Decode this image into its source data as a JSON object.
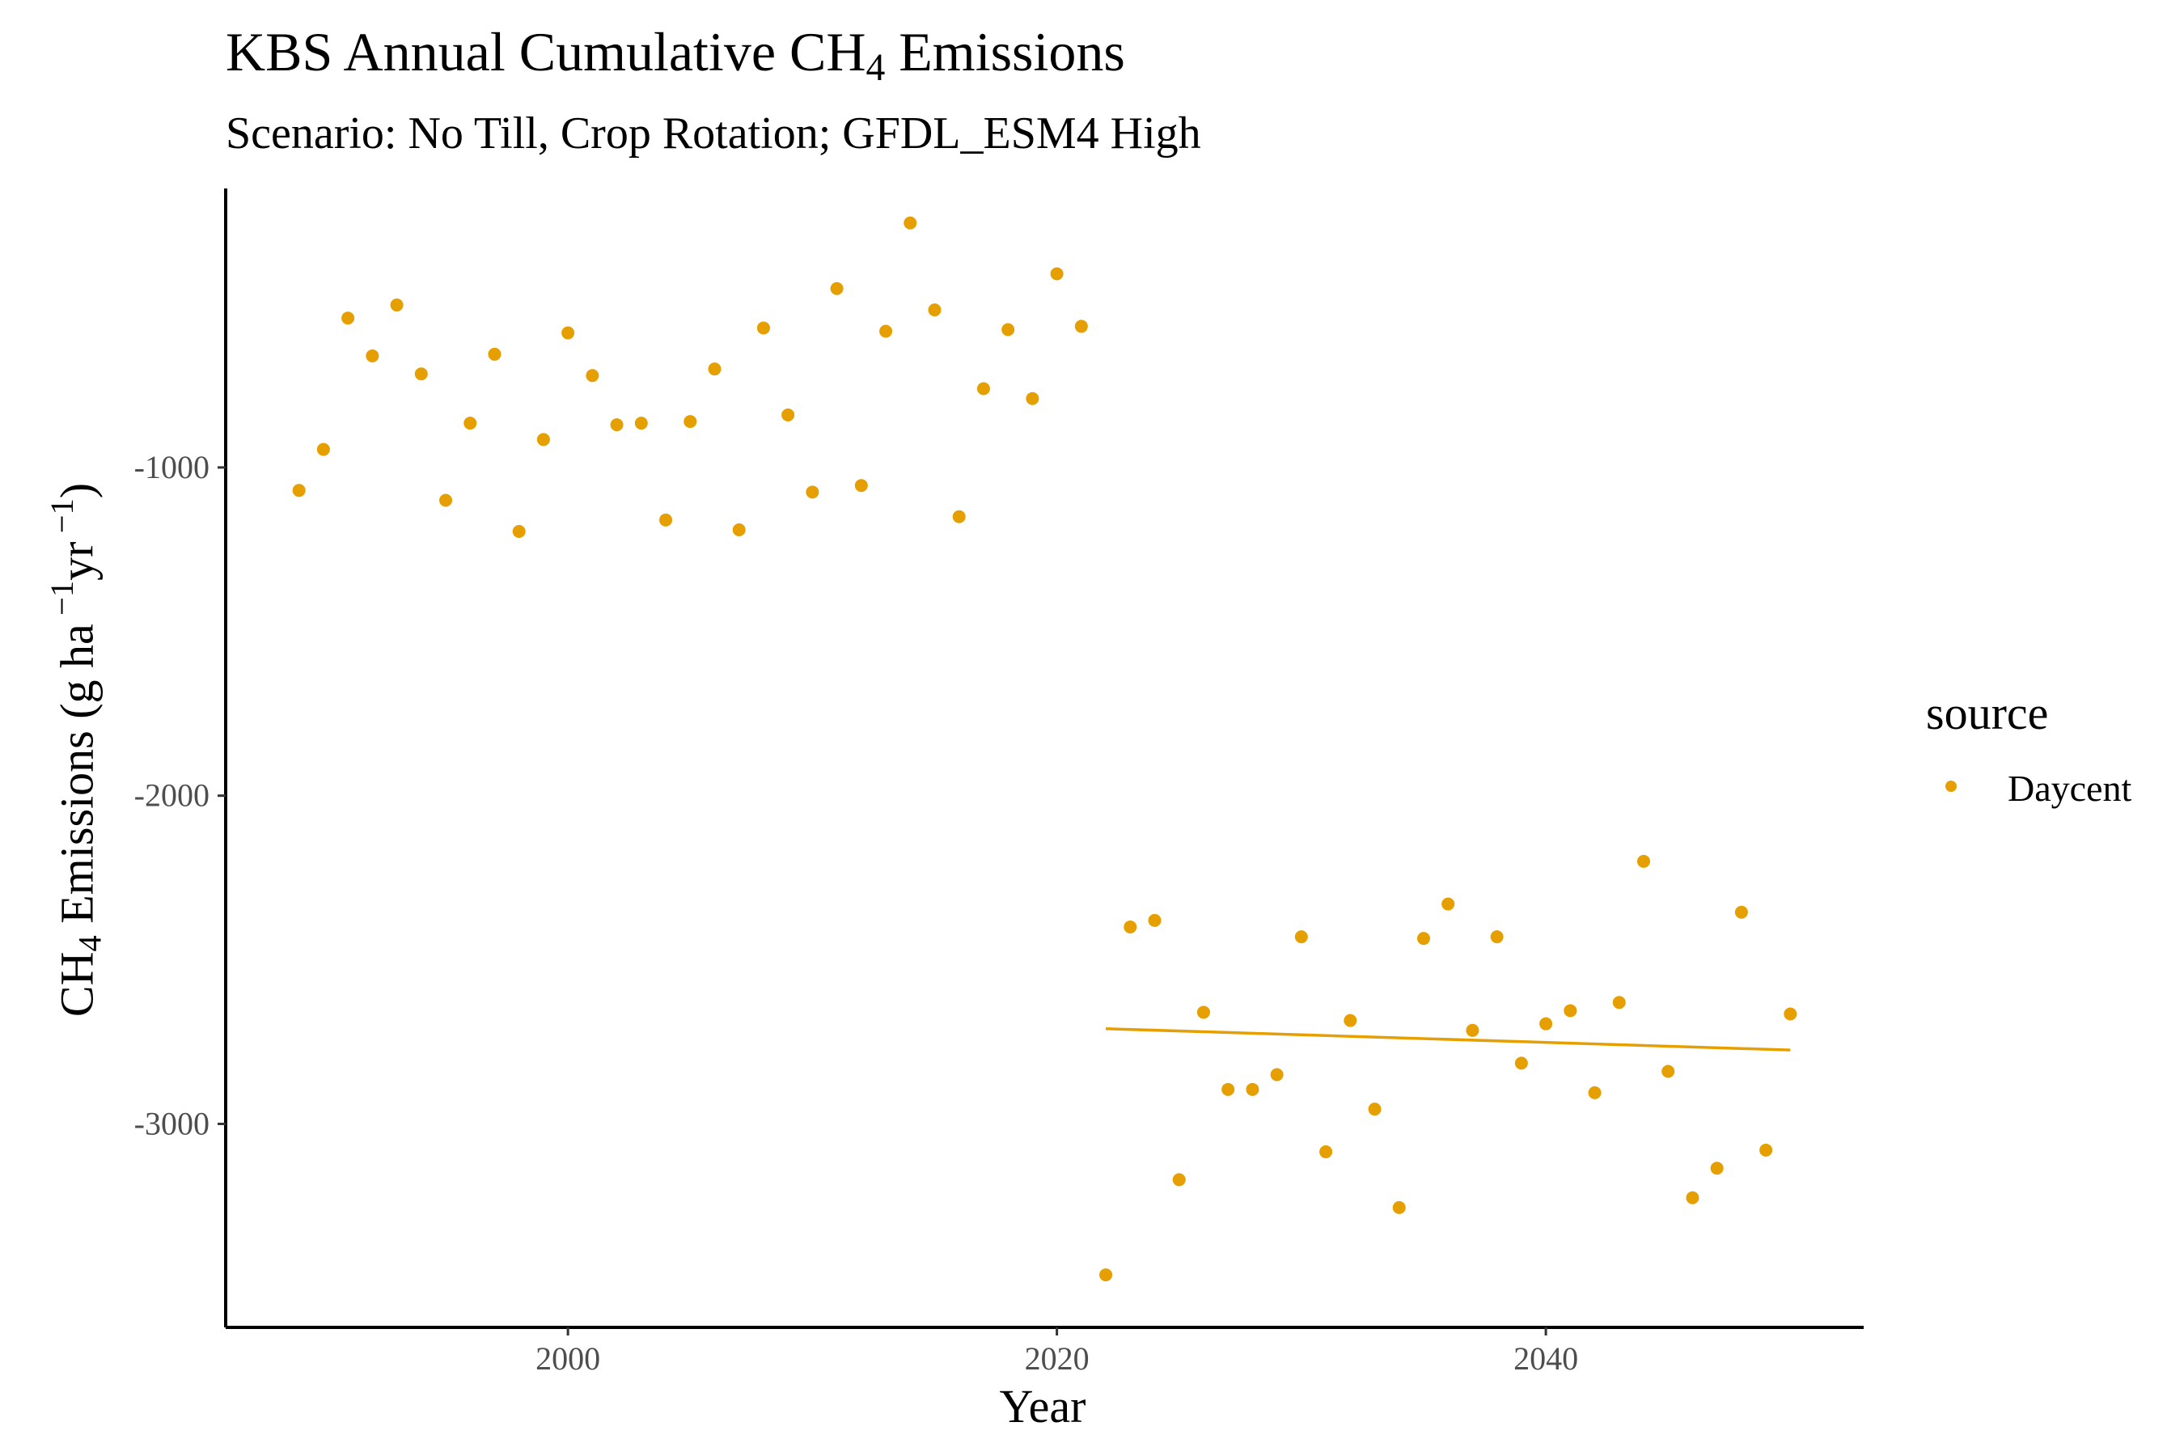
{
  "chart_data": {
    "type": "scatter",
    "title": "KBS Annual Cumulative CH",
    "title_subscript": "4",
    "title_suffix": " Emissions",
    "subtitle": "Scenario: No Till, Crop Rotation; GFDL_ESM4 High",
    "xlabel": "Year",
    "ylabel_parts": {
      "pre": "CH",
      "sub": "4",
      "mid": " Emissions (g ha",
      "sup1": " −1",
      "mid2": "yr",
      "sup2": " −1",
      "post": ")"
    },
    "xlim": [
      1986,
      2053
    ],
    "ylim": [
      -3620,
      -150
    ],
    "x_ticks": [
      2000,
      2020,
      2040
    ],
    "x_tick_labels": [
      "2000",
      "2020",
      "2040"
    ],
    "y_ticks": [
      -1000,
      -2000,
      -3000
    ],
    "y_tick_labels": [
      "-1000",
      "-2000",
      "-3000"
    ],
    "grid": false,
    "legend": {
      "title": "source",
      "position": "right",
      "entries": [
        "Daycent"
      ]
    },
    "series": [
      {
        "name": "Daycent",
        "color": "#E69F00",
        "points": [
          [
            1989,
            -1070
          ],
          [
            1990,
            -945
          ],
          [
            1991,
            -545
          ],
          [
            1992,
            -660
          ],
          [
            1993,
            -505
          ],
          [
            1994,
            -715
          ],
          [
            1995,
            -1100
          ],
          [
            1996,
            -865
          ],
          [
            1997,
            -655
          ],
          [
            1998,
            -1195
          ],
          [
            1999,
            -915
          ],
          [
            2000,
            -590
          ],
          [
            2001,
            -720
          ],
          [
            2002,
            -870
          ],
          [
            2003,
            -865
          ],
          [
            2004,
            -1160
          ],
          [
            2005,
            -860
          ],
          [
            2006,
            -700
          ],
          [
            2007,
            -1190
          ],
          [
            2008,
            -575
          ],
          [
            2009,
            -840
          ],
          [
            2010,
            -1075
          ],
          [
            2011,
            -455
          ],
          [
            2012,
            -1055
          ],
          [
            2013,
            -585
          ],
          [
            2014,
            -255
          ],
          [
            2015,
            -520
          ],
          [
            2016,
            -1150
          ],
          [
            2017,
            -760
          ],
          [
            2018,
            -580
          ],
          [
            2019,
            -790
          ],
          [
            2020,
            -410
          ],
          [
            2021,
            -570
          ],
          [
            2022,
            -3460
          ],
          [
            2023,
            -2400
          ],
          [
            2024,
            -2380
          ],
          [
            2025,
            -3170
          ],
          [
            2026,
            -2660
          ],
          [
            2027,
            -2895
          ],
          [
            2028,
            -2895
          ],
          [
            2029,
            -2850
          ],
          [
            2030,
            -2430
          ],
          [
            2031,
            -3085
          ],
          [
            2032,
            -2685
          ],
          [
            2033,
            -2955
          ],
          [
            2034,
            -3255
          ],
          [
            2035,
            -2435
          ],
          [
            2036,
            -2330
          ],
          [
            2037,
            -2715
          ],
          [
            2038,
            -2430
          ],
          [
            2039,
            -2815
          ],
          [
            2040,
            -2695
          ],
          [
            2041,
            -2655
          ],
          [
            2042,
            -2905
          ],
          [
            2043,
            -2630
          ],
          [
            2044,
            -2200
          ],
          [
            2045,
            -2840
          ],
          [
            2046,
            -3225
          ],
          [
            2047,
            -3135
          ],
          [
            2048,
            -2355
          ],
          [
            2049,
            -3080
          ],
          [
            2050,
            -2665
          ]
        ]
      }
    ],
    "trend_line": {
      "series": "Daycent",
      "x": [
        2022,
        2050
      ],
      "y": [
        -2710,
        -2775
      ]
    }
  }
}
